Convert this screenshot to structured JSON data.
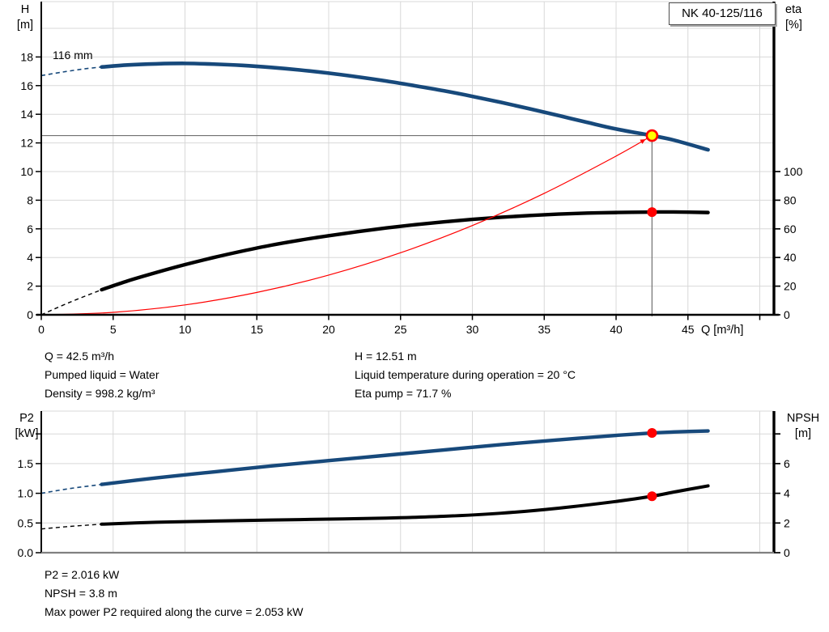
{
  "pump_model": "NK 40-125/116",
  "impeller_label": "116 mm",
  "colors": {
    "curve_blue": "#17497b",
    "curve_black": "#000000",
    "system_curve_red": "#ff0000",
    "marker_red": "#ff0000",
    "marker_yellow": "#ffff00",
    "grid": "#d8d8d8",
    "crosshair": "#707070",
    "axis_black": "#000000",
    "axis_gray": "#808080"
  },
  "info_top_left": [
    "Q = 42.5 m³/h",
    "Pumped liquid = Water",
    "Density = 998.2 kg/m³"
  ],
  "info_top_right": [
    "H = 12.51 m",
    "Liquid temperature during operation = 20 °C",
    "Eta pump = 71.7 %"
  ],
  "info_bottom": [
    "P2 = 2.016 kW",
    "NPSH = 3.8 m",
    "Max power P2 required along the curve = 2.053 kW"
  ],
  "operating_point": {
    "Q_m3h": 42.5,
    "H_m": 12.51,
    "eta_pct": 71.7,
    "P2_kW": 2.016,
    "NPSH_m": 3.8,
    "max_P2_kW": 2.053
  },
  "chart_data": [
    {
      "type": "line",
      "title": "NK 40-125/116",
      "x_axis": {
        "label": "Q [m³/h]",
        "range": [
          0,
          51
        ],
        "ticks": [
          {
            "v": 0,
            "label": "0"
          },
          {
            "v": 5,
            "label": "5"
          },
          {
            "v": 10,
            "label": "10"
          },
          {
            "v": 15,
            "label": "15"
          },
          {
            "v": 20,
            "label": "20"
          },
          {
            "v": 25,
            "label": "25"
          },
          {
            "v": 30,
            "label": "30"
          },
          {
            "v": 35,
            "label": "35"
          },
          {
            "v": 40,
            "label": "40"
          },
          {
            "v": 45,
            "label": "45"
          }
        ],
        "tick_marks": [
          0,
          5,
          10,
          15,
          20,
          25,
          30,
          35,
          40,
          45,
          50
        ],
        "grid": [
          5,
          10,
          15,
          20,
          25,
          30,
          35,
          40,
          45,
          50
        ]
      },
      "y_left": {
        "label_lines": [
          "H",
          "[m]"
        ],
        "range": [
          0,
          21.9
        ],
        "ticks": [
          {
            "v": 0,
            "label": "0"
          },
          {
            "v": 2,
            "label": "2"
          },
          {
            "v": 4,
            "label": "4"
          },
          {
            "v": 6,
            "label": "6"
          },
          {
            "v": 8,
            "label": "8"
          },
          {
            "v": 10,
            "label": "10"
          },
          {
            "v": 12,
            "label": "12"
          },
          {
            "v": 14,
            "label": "14"
          },
          {
            "v": 16,
            "label": "16"
          },
          {
            "v": 18,
            "label": "18"
          }
        ],
        "grid": [
          2,
          4,
          6,
          8,
          10,
          12,
          14,
          16,
          18,
          20
        ]
      },
      "y_right": {
        "label_lines": [
          "eta",
          "[%]"
        ],
        "range": [
          0,
          219
        ],
        "ticks": [
          {
            "v": 0,
            "label": "0"
          },
          {
            "v": 20,
            "label": "20"
          },
          {
            "v": 40,
            "label": "40"
          },
          {
            "v": 60,
            "label": "60"
          },
          {
            "v": 80,
            "label": "80"
          },
          {
            "v": 100,
            "label": "100"
          }
        ]
      },
      "series": [
        {
          "name": "efficiency-curve",
          "axis": "right",
          "color": "#000000",
          "width": 4.4,
          "dash_width": 1.4,
          "dashed_points": [
            [
              0,
              0
            ],
            [
              2,
              8.8
            ],
            [
              4.2,
              17.5
            ]
          ],
          "points": [
            [
              4.2,
              17.5
            ],
            [
              6,
              23.6
            ],
            [
              8,
              29.5
            ],
            [
              10,
              35
            ],
            [
              12,
              40
            ],
            [
              14,
              44.5
            ],
            [
              16,
              48.6
            ],
            [
              18,
              52.1
            ],
            [
              20,
              55.2
            ],
            [
              22,
              58
            ],
            [
              24,
              60.6
            ],
            [
              26,
              62.9
            ],
            [
              28,
              64.9
            ],
            [
              30,
              66.6
            ],
            [
              32,
              68.1
            ],
            [
              34,
              69.3
            ],
            [
              36,
              70.3
            ],
            [
              38,
              71
            ],
            [
              40,
              71.4
            ],
            [
              42.5,
              71.7
            ],
            [
              44,
              71.8
            ],
            [
              46.4,
              71.4
            ]
          ]
        },
        {
          "name": "system-curve",
          "axis": "left",
          "color": "#ff0000",
          "width": 1.2,
          "arrow": true,
          "points": [
            [
              0,
              0
            ],
            [
              5,
              0.17
            ],
            [
              10,
              0.69
            ],
            [
              15,
              1.56
            ],
            [
              20,
              2.77
            ],
            [
              25,
              4.33
            ],
            [
              30,
              6.23
            ],
            [
              35,
              8.48
            ],
            [
              40,
              11.08
            ],
            [
              42.5,
              12.51
            ]
          ]
        },
        {
          "name": "head-curve-116mm",
          "axis": "left",
          "color": "#17497b",
          "width": 4.6,
          "dash_width": 1.6,
          "dashed_points": [
            [
              0,
              16.7
            ],
            [
              1.5,
              16.95
            ],
            [
              3,
              17.17
            ],
            [
              4.2,
              17.3
            ]
          ],
          "points": [
            [
              4.2,
              17.3
            ],
            [
              6,
              17.44
            ],
            [
              8,
              17.52
            ],
            [
              10,
              17.55
            ],
            [
              12,
              17.5
            ],
            [
              14,
              17.41
            ],
            [
              16,
              17.27
            ],
            [
              18,
              17.09
            ],
            [
              20,
              16.87
            ],
            [
              22,
              16.61
            ],
            [
              24,
              16.32
            ],
            [
              26,
              15.99
            ],
            [
              28,
              15.64
            ],
            [
              30,
              15.25
            ],
            [
              32,
              14.83
            ],
            [
              34,
              14.38
            ],
            [
              36,
              13.91
            ],
            [
              38,
              13.43
            ],
            [
              40,
              12.97
            ],
            [
              42.5,
              12.51
            ],
            [
              44,
              12.2
            ],
            [
              46.4,
              11.52
            ]
          ]
        }
      ],
      "crosshair": {
        "h_value": 12.51,
        "v_q": 42.5
      },
      "markers": [
        {
          "q": 42.5,
          "v": 12.51,
          "axis": "left",
          "style": "duty_point"
        },
        {
          "q": 42.5,
          "v": 71.7,
          "axis": "right",
          "style": "dot"
        }
      ]
    },
    {
      "type": "line",
      "title": "P2 / NPSH",
      "x_axis": {
        "label": "",
        "range": [
          0,
          51
        ],
        "ticks": [],
        "tick_marks": [],
        "grid": [
          5,
          10,
          15,
          20,
          25,
          30,
          35,
          40,
          45,
          50
        ]
      },
      "y_left": {
        "label_lines": [
          "P2",
          "[kW]"
        ],
        "range": [
          0,
          2.38
        ],
        "ticks": [
          {
            "v": 0,
            "label": "0.0"
          },
          {
            "v": 0.5,
            "label": "0.5"
          },
          {
            "v": 1,
            "label": "1.0"
          },
          {
            "v": 1.5,
            "label": "1.5"
          },
          {
            "v": 2,
            "label": ""
          }
        ],
        "grid": [
          0.5,
          1,
          1.5,
          2
        ]
      },
      "y_right": {
        "label_lines": [
          "NPSH",
          "[m]"
        ],
        "range": [
          0,
          9.5
        ],
        "ticks": [
          {
            "v": 0,
            "label": "0"
          },
          {
            "v": 2,
            "label": "2"
          },
          {
            "v": 4,
            "label": "4"
          },
          {
            "v": 6,
            "label": "6"
          },
          {
            "v": 8,
            "label": ""
          }
        ]
      },
      "series": [
        {
          "name": "npsh-curve",
          "axis": "right",
          "color": "#000000",
          "width": 4.0,
          "dash_width": 1.4,
          "dashed_points": [
            [
              0,
              1.6
            ],
            [
              2,
              1.77
            ],
            [
              4.2,
              1.92
            ]
          ],
          "points": [
            [
              4.2,
              1.92
            ],
            [
              8,
              2.05
            ],
            [
              12,
              2.13
            ],
            [
              16,
              2.2
            ],
            [
              20,
              2.26
            ],
            [
              24,
              2.33
            ],
            [
              28,
              2.45
            ],
            [
              32,
              2.66
            ],
            [
              36,
              3.0
            ],
            [
              40,
              3.45
            ],
            [
              42.5,
              3.8
            ],
            [
              44,
              4.08
            ],
            [
              46.4,
              4.5
            ]
          ]
        },
        {
          "name": "p2-curve",
          "axis": "left",
          "color": "#17497b",
          "width": 4.4,
          "dash_width": 1.6,
          "dashed_points": [
            [
              0,
              1.0
            ],
            [
              2,
              1.08
            ],
            [
              4.2,
              1.15
            ]
          ],
          "points": [
            [
              4.2,
              1.15
            ],
            [
              8,
              1.26
            ],
            [
              12,
              1.36
            ],
            [
              16,
              1.46
            ],
            [
              20,
              1.55
            ],
            [
              24,
              1.64
            ],
            [
              28,
              1.73
            ],
            [
              32,
              1.82
            ],
            [
              36,
              1.9
            ],
            [
              40,
              1.975
            ],
            [
              42.5,
              2.016
            ],
            [
              44,
              2.032
            ],
            [
              46.4,
              2.05
            ]
          ]
        }
      ],
      "markers": [
        {
          "q": 42.5,
          "v": 2.016,
          "axis": "left",
          "style": "dot"
        },
        {
          "q": 42.5,
          "v": 3.8,
          "axis": "right",
          "style": "dot"
        }
      ]
    }
  ]
}
